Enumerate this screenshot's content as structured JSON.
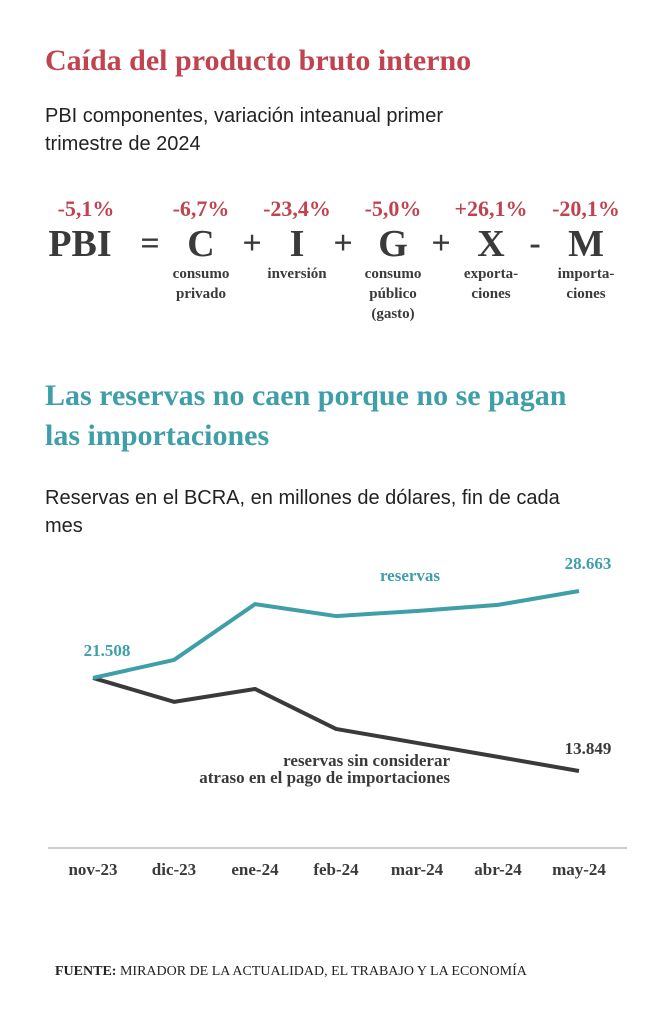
{
  "header": {
    "title": "Caída del producto bruto interno",
    "subtitle": "PBI componentes, variación inteanual primer trimestre de 2024"
  },
  "formula": {
    "items": [
      {
        "symbol": "PBI",
        "change": "-5,1%"
      },
      {
        "operator": "="
      },
      {
        "symbol": "C",
        "change": "-6,7%",
        "label": "consumo privado"
      },
      {
        "operator": "+"
      },
      {
        "symbol": "I",
        "change": "-23,4%",
        "label": "inversión"
      },
      {
        "operator": "+"
      },
      {
        "symbol": "G",
        "change": "-5,0%",
        "label": "consumo público (gasto)"
      },
      {
        "operator": "+"
      },
      {
        "symbol": "X",
        "change": "+26,1%",
        "label": "exporta-ciones"
      },
      {
        "operator": "-"
      },
      {
        "symbol": "M",
        "change": "-20,1%",
        "label": "importa-ciones"
      }
    ]
  },
  "chart_data": {
    "type": "line",
    "title": "Las reservas no caen porque no se pagan las importaciones",
    "subtitle": "Reservas en el BCRA, en millones de dólares, fin de cada mes",
    "categories": [
      "nov-23",
      "dic-23",
      "ene-24",
      "feb-24",
      "mar-24",
      "abr-24",
      "may-24"
    ],
    "series": [
      {
        "name": "reservas",
        "color": "#3e9fa8",
        "values": [
          21508,
          22990,
          27580,
          26600,
          27020,
          27520,
          28663
        ],
        "value_labels": [
          "21.508",
          null,
          null,
          null,
          null,
          null,
          "28.663"
        ]
      },
      {
        "name": "reservas sin considerar\natraso en el pago de importaciones",
        "color": "#3a3a3a",
        "values": [
          21508,
          19540,
          20600,
          17310,
          16160,
          15010,
          13849
        ],
        "value_labels": [
          null,
          null,
          null,
          null,
          null,
          null,
          "13.849"
        ]
      }
    ]
  },
  "footer": {
    "source_label": "FUENTE:",
    "source": "MIRADOR DE LA ACTUALIDAD, EL TRABAJO Y LA ECONOMÍA"
  }
}
